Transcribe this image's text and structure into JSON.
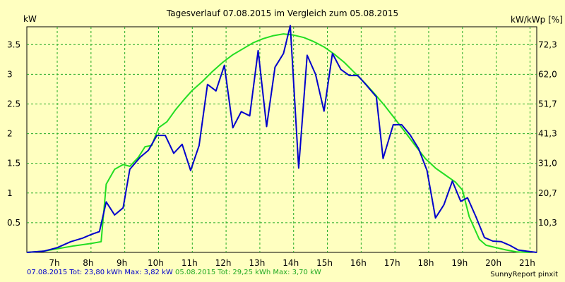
{
  "chart_data": {
    "type": "line",
    "title": "Tagesverlauf 07.08.2015 im Vergleich zum 05.08.2015",
    "ylabel_left": "kW",
    "ylabel_right": "kW/kWp [%]",
    "xlim": [
      6.1,
      21.2
    ],
    "ylim": [
      0,
      3.8
    ],
    "x_ticks": [
      {
        "value": 7,
        "label": "7h"
      },
      {
        "value": 8,
        "label": "8h"
      },
      {
        "value": 9,
        "label": "9h"
      },
      {
        "value": 10,
        "label": "10h"
      },
      {
        "value": 11,
        "label": "11h"
      },
      {
        "value": 12,
        "label": "12h"
      },
      {
        "value": 13,
        "label": "13h"
      },
      {
        "value": 14,
        "label": "14h"
      },
      {
        "value": 15,
        "label": "15h"
      },
      {
        "value": 16,
        "label": "16h"
      },
      {
        "value": 17,
        "label": "17h"
      },
      {
        "value": 18,
        "label": "18h"
      },
      {
        "value": 19,
        "label": "19h"
      },
      {
        "value": 20,
        "label": "20h"
      },
      {
        "value": 21,
        "label": "21h"
      }
    ],
    "y_ticks_left": [
      {
        "value": 0.5,
        "label": "0.5"
      },
      {
        "value": 1,
        "label": "1"
      },
      {
        "value": 1.5,
        "label": "1.5"
      },
      {
        "value": 2,
        "label": "2"
      },
      {
        "value": 2.5,
        "label": "2.5"
      },
      {
        "value": 3,
        "label": "3"
      },
      {
        "value": 3.5,
        "label": "3.5"
      }
    ],
    "y_ticks_right": [
      {
        "value": 0.5,
        "label": "10,3"
      },
      {
        "value": 1,
        "label": "20,7"
      },
      {
        "value": 1.5,
        "label": "31,0"
      },
      {
        "value": 2,
        "label": "41,3"
      },
      {
        "value": 2.5,
        "label": "51,7"
      },
      {
        "value": 3,
        "label": "62,0"
      },
      {
        "value": 3.5,
        "label": "72,3"
      }
    ],
    "grid": true,
    "series": [
      {
        "name": "07.08.2015",
        "color": "#0000cc",
        "points": [
          [
            6.1,
            0.0
          ],
          [
            6.6,
            0.02
          ],
          [
            7.0,
            0.08
          ],
          [
            7.4,
            0.18
          ],
          [
            7.75,
            0.24
          ],
          [
            8.0,
            0.3
          ],
          [
            8.25,
            0.35
          ],
          [
            8.45,
            0.85
          ],
          [
            8.7,
            0.63
          ],
          [
            8.95,
            0.75
          ],
          [
            9.15,
            1.4
          ],
          [
            9.45,
            1.6
          ],
          [
            9.7,
            1.72
          ],
          [
            9.95,
            1.97
          ],
          [
            10.2,
            1.97
          ],
          [
            10.45,
            1.67
          ],
          [
            10.7,
            1.82
          ],
          [
            10.95,
            1.38
          ],
          [
            11.2,
            1.8
          ],
          [
            11.45,
            2.83
          ],
          [
            11.7,
            2.72
          ],
          [
            11.95,
            3.15
          ],
          [
            12.2,
            2.1
          ],
          [
            12.45,
            2.37
          ],
          [
            12.7,
            2.3
          ],
          [
            12.95,
            3.4
          ],
          [
            13.2,
            2.12
          ],
          [
            13.45,
            3.12
          ],
          [
            13.7,
            3.35
          ],
          [
            13.9,
            3.82
          ],
          [
            14.15,
            1.42
          ],
          [
            14.4,
            3.32
          ],
          [
            14.65,
            3.0
          ],
          [
            14.9,
            2.38
          ],
          [
            15.15,
            3.35
          ],
          [
            15.4,
            3.08
          ],
          [
            15.65,
            2.98
          ],
          [
            15.9,
            2.98
          ],
          [
            16.15,
            2.82
          ],
          [
            16.45,
            2.62
          ],
          [
            16.65,
            1.58
          ],
          [
            16.95,
            2.15
          ],
          [
            17.2,
            2.15
          ],
          [
            17.45,
            1.98
          ],
          [
            17.7,
            1.75
          ],
          [
            17.95,
            1.38
          ],
          [
            18.2,
            0.58
          ],
          [
            18.45,
            0.8
          ],
          [
            18.7,
            1.2
          ],
          [
            18.95,
            0.86
          ],
          [
            19.15,
            0.92
          ],
          [
            19.4,
            0.6
          ],
          [
            19.65,
            0.25
          ],
          [
            19.9,
            0.19
          ],
          [
            20.15,
            0.18
          ],
          [
            20.4,
            0.12
          ],
          [
            20.65,
            0.04
          ],
          [
            20.9,
            0.02
          ],
          [
            21.2,
            0.0
          ]
        ]
      },
      {
        "name": "05.08.2015",
        "color": "#22dd22",
        "points": [
          [
            6.1,
            0.0
          ],
          [
            6.6,
            0.02
          ],
          [
            7.0,
            0.06
          ],
          [
            7.5,
            0.11
          ],
          [
            8.0,
            0.15
          ],
          [
            8.3,
            0.18
          ],
          [
            8.45,
            1.15
          ],
          [
            8.7,
            1.4
          ],
          [
            8.95,
            1.48
          ],
          [
            9.15,
            1.45
          ],
          [
            9.4,
            1.6
          ],
          [
            9.6,
            1.78
          ],
          [
            9.8,
            1.8
          ],
          [
            10.0,
            2.1
          ],
          [
            10.25,
            2.2
          ],
          [
            10.5,
            2.4
          ],
          [
            10.75,
            2.57
          ],
          [
            11.0,
            2.73
          ],
          [
            11.3,
            2.88
          ],
          [
            11.6,
            3.05
          ],
          [
            11.9,
            3.2
          ],
          [
            12.2,
            3.33
          ],
          [
            12.5,
            3.43
          ],
          [
            12.8,
            3.53
          ],
          [
            13.1,
            3.6
          ],
          [
            13.4,
            3.65
          ],
          [
            13.7,
            3.68
          ],
          [
            14.0,
            3.66
          ],
          [
            14.3,
            3.62
          ],
          [
            14.6,
            3.55
          ],
          [
            14.9,
            3.46
          ],
          [
            15.2,
            3.34
          ],
          [
            15.5,
            3.2
          ],
          [
            15.8,
            3.03
          ],
          [
            16.1,
            2.86
          ],
          [
            16.4,
            2.67
          ],
          [
            16.7,
            2.47
          ],
          [
            17.0,
            2.25
          ],
          [
            17.3,
            2.03
          ],
          [
            17.6,
            1.8
          ],
          [
            17.9,
            1.58
          ],
          [
            18.2,
            1.42
          ],
          [
            18.5,
            1.3
          ],
          [
            18.8,
            1.18
          ],
          [
            19.0,
            1.05
          ],
          [
            19.2,
            0.6
          ],
          [
            19.5,
            0.22
          ],
          [
            19.7,
            0.12
          ],
          [
            20.0,
            0.08
          ],
          [
            20.3,
            0.04
          ],
          [
            20.6,
            0.01
          ],
          [
            21.0,
            0.0
          ]
        ]
      }
    ]
  },
  "footer": {
    "legend_07": "07.08.2015 Tot: 23,80 kWh Max: 3,82 kW",
    "legend_05": "05.08.2015 Tot: 29,25 kWh Max: 3,70 kW",
    "credit": "SunnyReport pinxit"
  }
}
